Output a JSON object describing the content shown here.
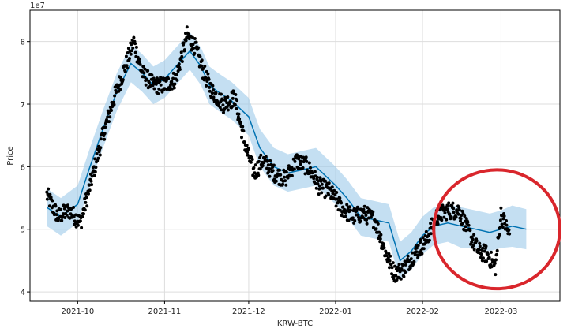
{
  "chart_data": {
    "type": "line",
    "title": "",
    "xlabel": "KRW-BTC",
    "ylabel": "Price",
    "y_multiplier_label": "1e7",
    "y_unit": "1e7 KRW",
    "xlim": [
      "2021-09-14",
      "2022-03-22"
    ],
    "ylim": [
      3.85,
      8.5
    ],
    "grid": true,
    "x_ticks": [
      "2021-10",
      "2021-11",
      "2021-12",
      "2022-01",
      "2022-02",
      "2022-03"
    ],
    "y_ticks": [
      4,
      5,
      6,
      7,
      8
    ],
    "colors": {
      "forecast_line": "#0072B2",
      "uncertainty_band": "#9ccaea",
      "observations": "#000000",
      "annotation_circle": "#d9262c",
      "grid": "#dddddd"
    },
    "series": [
      {
        "kind": "forecast",
        "x": [
          "2021-09-20",
          "2021-09-25",
          "2021-10-01",
          "2021-10-05",
          "2021-10-10",
          "2021-10-15",
          "2021-10-20",
          "2021-10-24",
          "2021-10-28",
          "2021-11-01",
          "2021-11-05",
          "2021-11-10",
          "2021-11-14",
          "2021-11-17",
          "2021-11-20",
          "2021-11-25",
          "2021-12-01",
          "2021-12-05",
          "2021-12-10",
          "2021-12-15",
          "2021-12-20",
          "2021-12-25",
          "2022-01-01",
          "2022-01-05",
          "2022-01-10",
          "2022-01-15",
          "2022-01-20",
          "2022-01-24",
          "2022-01-28",
          "2022-02-01",
          "2022-02-05",
          "2022-02-10",
          "2022-02-15",
          "2022-02-20",
          "2022-02-25",
          "2022-03-01",
          "2022-03-05",
          "2022-03-10"
        ],
        "y": [
          5.35,
          5.2,
          5.4,
          5.95,
          6.6,
          7.2,
          7.65,
          7.5,
          7.3,
          7.4,
          7.6,
          7.85,
          7.6,
          7.3,
          7.2,
          7.05,
          6.8,
          6.3,
          6.0,
          5.9,
          5.95,
          6.0,
          5.7,
          5.5,
          5.2,
          5.15,
          5.1,
          4.5,
          4.65,
          4.9,
          5.05,
          5.1,
          5.05,
          5.0,
          4.95,
          5.0,
          5.05,
          5.0
        ],
        "band_lower": [
          5.05,
          4.9,
          5.1,
          5.65,
          6.3,
          6.9,
          7.35,
          7.2,
          7.0,
          7.1,
          7.3,
          7.55,
          7.3,
          7.0,
          6.9,
          6.75,
          6.5,
          6.0,
          5.7,
          5.6,
          5.65,
          5.7,
          5.4,
          5.2,
          4.9,
          4.85,
          4.8,
          4.2,
          4.35,
          4.6,
          4.75,
          4.8,
          4.7,
          4.7,
          4.65,
          4.7,
          4.72,
          4.68
        ],
        "band_upper": [
          5.65,
          5.5,
          5.7,
          6.25,
          6.9,
          7.5,
          7.95,
          7.8,
          7.6,
          7.7,
          7.9,
          8.15,
          7.9,
          7.6,
          7.5,
          7.35,
          7.1,
          6.6,
          6.3,
          6.2,
          6.25,
          6.3,
          6.0,
          5.8,
          5.5,
          5.45,
          5.4,
          4.8,
          4.95,
          5.2,
          5.35,
          5.4,
          5.35,
          5.3,
          5.25,
          5.3,
          5.38,
          5.32
        ]
      },
      {
        "kind": "observations",
        "x": [
          "2021-09-20",
          "2021-09-24",
          "2021-09-28",
          "2021-10-02",
          "2021-10-06",
          "2021-10-10",
          "2021-10-14",
          "2021-10-18",
          "2021-10-21",
          "2021-10-24",
          "2021-10-28",
          "2021-11-01",
          "2021-11-05",
          "2021-11-09",
          "2021-11-12",
          "2021-11-15",
          "2021-11-18",
          "2021-11-22",
          "2021-11-26",
          "2021-11-30",
          "2021-12-03",
          "2021-12-06",
          "2021-12-10",
          "2021-12-14",
          "2021-12-18",
          "2021-12-22",
          "2021-12-26",
          "2021-12-30",
          "2022-01-03",
          "2022-01-07",
          "2022-01-11",
          "2022-01-15",
          "2022-01-19",
          "2022-01-22",
          "2022-01-25",
          "2022-01-29",
          "2022-02-02",
          "2022-02-06",
          "2022-02-10",
          "2022-02-14",
          "2022-02-18",
          "2022-02-21",
          "2022-02-24",
          "2022-02-27",
          "2022-03-01",
          "2022-03-04"
        ],
        "y": [
          5.55,
          5.2,
          5.3,
          5.1,
          5.8,
          6.5,
          7.1,
          7.6,
          8.0,
          7.5,
          7.3,
          7.3,
          7.4,
          8.1,
          7.9,
          7.5,
          7.2,
          7.0,
          7.1,
          6.3,
          5.9,
          6.1,
          5.9,
          5.8,
          6.1,
          6.0,
          5.7,
          5.6,
          5.35,
          5.2,
          5.25,
          5.15,
          4.6,
          4.3,
          4.35,
          4.6,
          4.8,
          5.2,
          5.3,
          5.3,
          4.9,
          4.65,
          4.6,
          4.4,
          5.25,
          4.9
        ]
      }
    ],
    "annotation": {
      "shape": "circle",
      "x_range": [
        "2022-02-05",
        "2022-03-22"
      ],
      "y_range": [
        4.05,
        5.95
      ]
    }
  }
}
